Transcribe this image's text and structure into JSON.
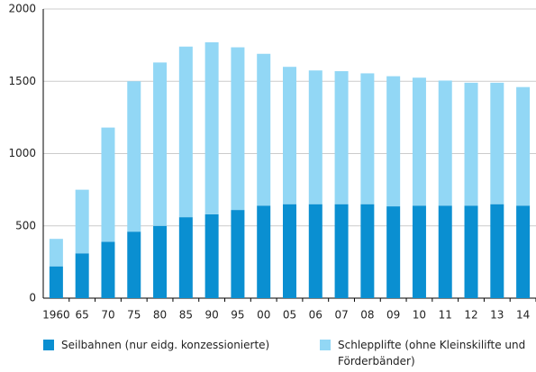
{
  "chart_data": {
    "type": "stacked_bar",
    "categories": [
      "1960",
      "65",
      "70",
      "75",
      "80",
      "85",
      "90",
      "95",
      "00",
      "05",
      "06",
      "07",
      "08",
      "09",
      "10",
      "11",
      "12",
      "13",
      "14"
    ],
    "series": [
      {
        "name": "Seilbahnen (nur eidg. konzessionierte)",
        "color": "#0a8fd1",
        "values": [
          220,
          310,
          390,
          460,
          500,
          560,
          580,
          610,
          640,
          650,
          650,
          650,
          650,
          635,
          640,
          640,
          640,
          650,
          640
        ]
      },
      {
        "name": "Schlepplifte (ohne Kleinskilifte und Förderbänder)",
        "color": "#92d7f5",
        "values": [
          190,
          440,
          790,
          1040,
          1130,
          1180,
          1190,
          1125,
          1050,
          950,
          925,
          920,
          905,
          900,
          885,
          865,
          850,
          840,
          820
        ]
      }
    ],
    "ylim": [
      0,
      2000
    ],
    "yticks": [
      0,
      500,
      1000,
      1500,
      2000
    ],
    "grid": true
  }
}
